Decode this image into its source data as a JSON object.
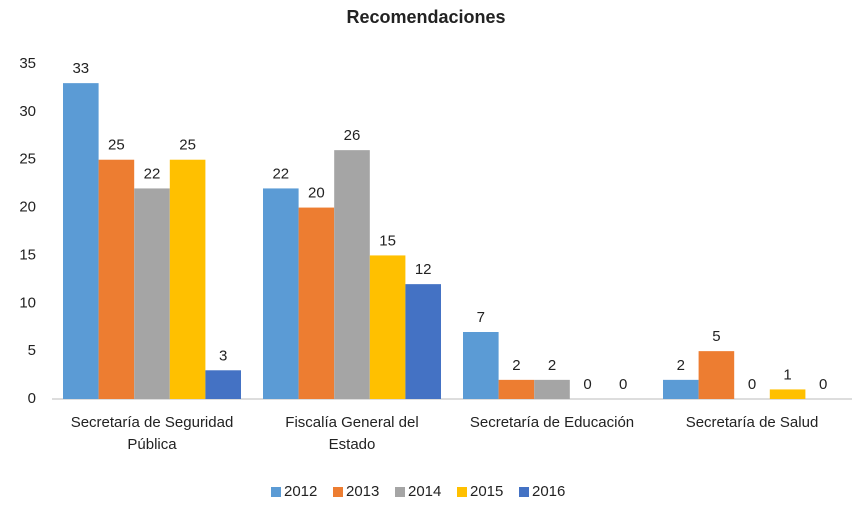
{
  "chart_data": {
    "type": "bar",
    "title": "Recomendaciones",
    "categories": [
      "Secretaría de Seguridad\nPública",
      "Fiscalía General del\nEstado",
      "Secretaría de Educación",
      "Secretaría de Salud"
    ],
    "series": [
      {
        "name": "2012",
        "color": "#5b9bd5",
        "values": [
          33,
          22,
          7,
          2
        ]
      },
      {
        "name": "2013",
        "color": "#ed7d31",
        "values": [
          25,
          20,
          2,
          5
        ]
      },
      {
        "name": "2014",
        "color": "#a5a5a5",
        "values": [
          22,
          26,
          2,
          0
        ]
      },
      {
        "name": "2015",
        "color": "#ffc000",
        "values": [
          25,
          15,
          0,
          1
        ]
      },
      {
        "name": "2016",
        "color": "#4472c4",
        "values": [
          3,
          12,
          0,
          0
        ]
      }
    ],
    "ylim": [
      0,
      35
    ],
    "yticks": [
      0,
      5,
      10,
      15,
      20,
      25,
      30,
      35
    ],
    "grid": false,
    "legend": "bottom"
  }
}
